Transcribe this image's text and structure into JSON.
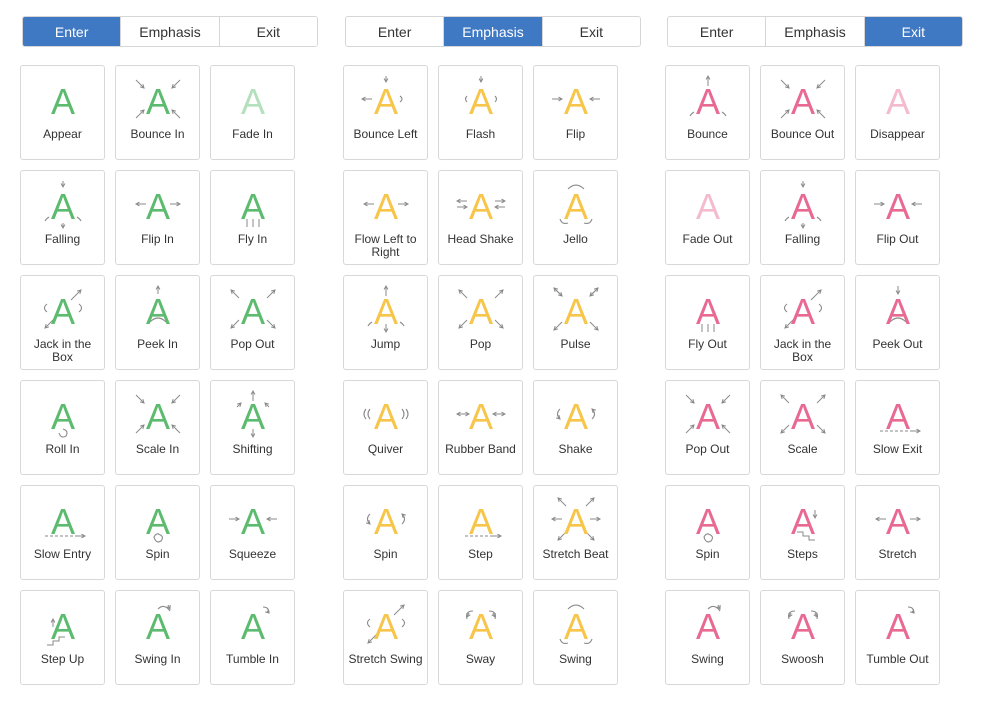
{
  "colors": {
    "enter": "#5cbb6f",
    "emphasis": "#f7c54a",
    "exit": "#e86a93",
    "accent": "#3f78c3"
  },
  "glyph": "A",
  "panels": [
    {
      "tabs": [
        "Enter",
        "Emphasis",
        "Exit"
      ],
      "active": 0,
      "color": "#5cbb6f",
      "items": [
        {
          "label": "Appear",
          "icon": "plain-a-icon"
        },
        {
          "label": "Bounce In",
          "icon": "arrows-inward-icon"
        },
        {
          "label": "Fade In",
          "icon": "faded-a-icon"
        },
        {
          "label": "Falling",
          "icon": "falling-a-icon"
        },
        {
          "label": "Flip In",
          "icon": "flip-a-icon"
        },
        {
          "label": "Fly In",
          "icon": "fly-a-icon"
        },
        {
          "label": "Jack in the Box",
          "icon": "jack-a-icon"
        },
        {
          "label": "Peek In",
          "icon": "peek-a-icon"
        },
        {
          "label": "Pop Out",
          "icon": "arrows-outward-icon"
        },
        {
          "label": "Roll In",
          "icon": "roll-a-icon"
        },
        {
          "label": "Scale In",
          "icon": "arrows-inward-icon"
        },
        {
          "label": "Shifting",
          "icon": "shifting-a-icon"
        },
        {
          "label": "Slow Entry",
          "icon": "slow-a-icon"
        },
        {
          "label": "Spin",
          "icon": "spin-a-icon"
        },
        {
          "label": "Squeeze",
          "icon": "squeeze-a-icon"
        },
        {
          "label": "Step Up",
          "icon": "step-up-a-icon"
        },
        {
          "label": "Swing In",
          "icon": "swing-a-icon"
        },
        {
          "label": "Tumble In",
          "icon": "tumble-a-icon"
        }
      ]
    },
    {
      "tabs": [
        "Enter",
        "Emphasis",
        "Exit"
      ],
      "active": 1,
      "color": "#f7c54a",
      "items": [
        {
          "label": "Bounce Left",
          "icon": "bounce-left-a-icon"
        },
        {
          "label": "Flash",
          "icon": "flash-a-icon"
        },
        {
          "label": "Flip",
          "icon": "squeeze-a-icon"
        },
        {
          "label": "Flow Left to Right",
          "icon": "flip-a-icon"
        },
        {
          "label": "Head Shake",
          "icon": "headshake-a-icon"
        },
        {
          "label": "Jello",
          "icon": "jello-a-icon"
        },
        {
          "label": "Jump",
          "icon": "jump-a-icon"
        },
        {
          "label": "Pop",
          "icon": "arrows-outward-icon"
        },
        {
          "label": "Pulse",
          "icon": "pulse-a-icon"
        },
        {
          "label": "Quiver",
          "icon": "quiver-a-icon"
        },
        {
          "label": "Rubber Band",
          "icon": "rubber-a-icon"
        },
        {
          "label": "Shake",
          "icon": "shake-a-icon"
        },
        {
          "label": "Spin",
          "icon": "shake-a-icon"
        },
        {
          "label": "Step",
          "icon": "step-a-icon"
        },
        {
          "label": "Stretch Beat",
          "icon": "stretch-beat-a-icon"
        },
        {
          "label": "Stretch Swing",
          "icon": "stretch-swing-a-icon"
        },
        {
          "label": "Sway",
          "icon": "sway-a-icon"
        },
        {
          "label": "Swing",
          "icon": "jello-a-icon"
        }
      ]
    },
    {
      "tabs": [
        "Enter",
        "Emphasis",
        "Exit"
      ],
      "active": 2,
      "color": "#e86a93",
      "items": [
        {
          "label": "Bounce",
          "icon": "bounce-a-icon"
        },
        {
          "label": "Bounce Out",
          "icon": "arrows-inward-icon"
        },
        {
          "label": "Disappear",
          "icon": "faded-a-icon"
        },
        {
          "label": "Fade Out",
          "icon": "faded-a-icon"
        },
        {
          "label": "Falling",
          "icon": "falling-a-icon"
        },
        {
          "label": "Flip Out",
          "icon": "squeeze-a-icon"
        },
        {
          "label": "Fly Out",
          "icon": "fly-a-icon"
        },
        {
          "label": "Jack in the Box",
          "icon": "jack-a-icon"
        },
        {
          "label": "Peek Out",
          "icon": "peek-out-a-icon"
        },
        {
          "label": "Pop Out",
          "icon": "arrows-inward-icon"
        },
        {
          "label": "Scale",
          "icon": "arrows-outward-icon"
        },
        {
          "label": "Slow Exit",
          "icon": "slow-a-icon"
        },
        {
          "label": "Spin",
          "icon": "spin-a-icon"
        },
        {
          "label": "Steps",
          "icon": "steps-a-icon"
        },
        {
          "label": "Stretch",
          "icon": "flip-a-icon"
        },
        {
          "label": "Swing",
          "icon": "swing-a-icon"
        },
        {
          "label": "Swoosh",
          "icon": "sway-a-icon"
        },
        {
          "label": "Tumble Out",
          "icon": "tumble-a-icon"
        }
      ]
    }
  ]
}
